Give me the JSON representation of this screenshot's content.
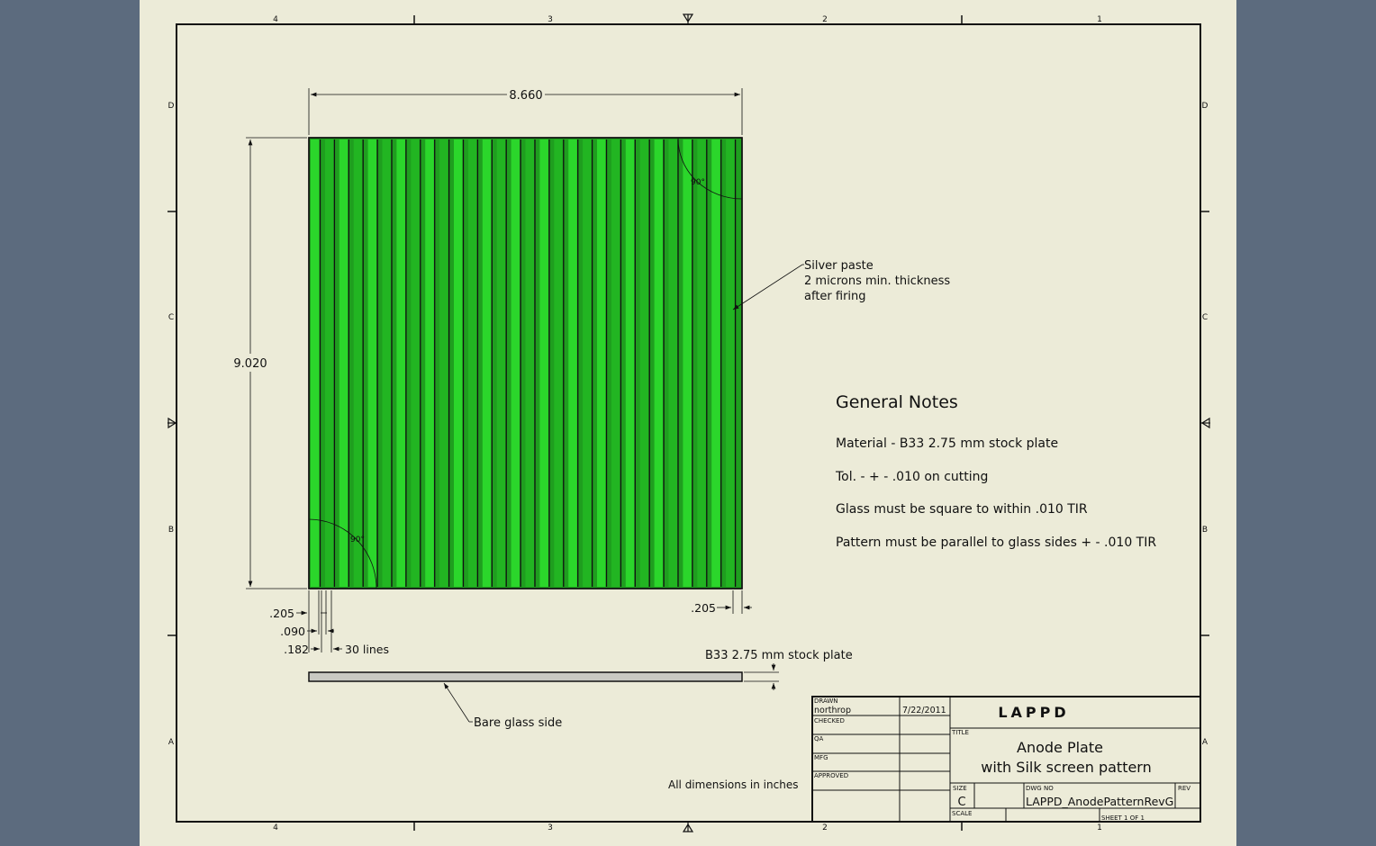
{
  "border": {
    "top_zones": [
      "4",
      "3",
      "2",
      "1"
    ],
    "bottom_zones": [
      "4",
      "3",
      "2",
      "1"
    ],
    "side_zones": [
      "D",
      "C",
      "B",
      "A"
    ]
  },
  "colors": {
    "background": "#5c6b7e",
    "paper": "#ecebd8",
    "stripe": "#22b522",
    "stripe_light": "#2bd62b",
    "line": "#111111"
  },
  "dimensions": {
    "width": "8.660",
    "height": "9.020",
    "left_margin": ".205",
    "right_margin": ".205",
    "line_width": ".090",
    "pitch": ".182",
    "line_count": "30 lines",
    "angle_top": "90°",
    "angle_bottom": "90°"
  },
  "callouts": {
    "silver_paste": [
      "Silver paste",
      "2 microns min. thickness",
      "after firing"
    ],
    "stock_plate": "B33 2.75 mm stock plate",
    "bare_glass": "Bare glass side",
    "units_note": "All dimensions in inches"
  },
  "notes": {
    "title": "General Notes",
    "items": [
      "Material - B33 2.75 mm stock plate",
      "Tol. -  + - .010 on cutting",
      "Glass must be square to within .010 TIR",
      "Pattern must be parallel to glass sides  + - .010 TIR"
    ]
  },
  "title_block": {
    "drawn_label": "DRAWN",
    "drawn_by": "northrop",
    "drawn_date": "7/22/2011",
    "checked_label": "CHECKED",
    "qa_label": "QA",
    "mfg_label": "MFG",
    "approved_label": "APPROVED",
    "company": "LAPPD",
    "title_label": "TITLE",
    "title_line1": "Anode Plate",
    "title_line2": "with Silk screen pattern",
    "size_label": "SIZE",
    "size": "C",
    "dwg_no_label": "DWG NO",
    "dwg_no": "LAPPD_AnodePatternRevG",
    "rev_label": "REV",
    "scale_label": "SCALE",
    "sheet": "SHEET 1  OF 1"
  }
}
